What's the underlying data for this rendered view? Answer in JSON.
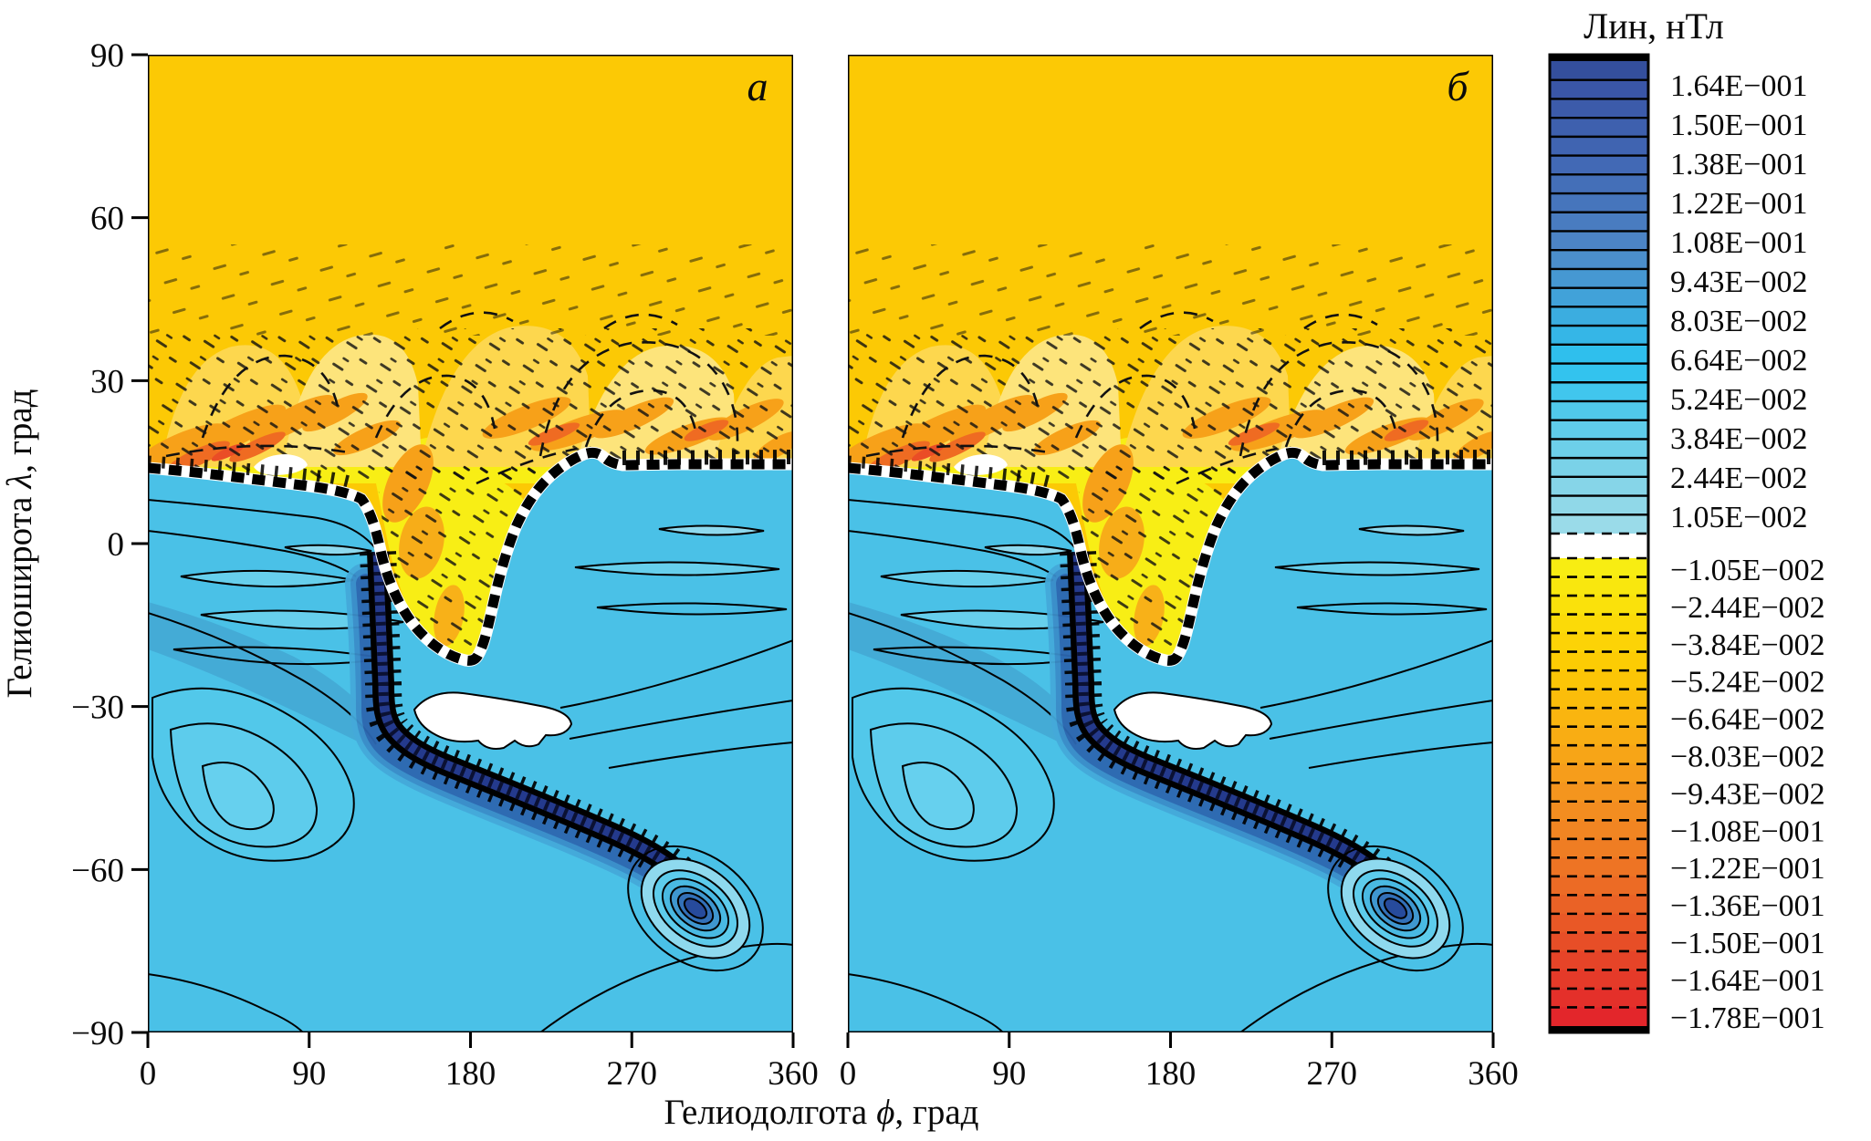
{
  "figure": {
    "panels": [
      {
        "label": "a"
      },
      {
        "label": "б"
      }
    ],
    "x_axis": {
      "title_prefix": "Гелиодолгота",
      "title_symbol": "ϕ",
      "title_suffix": ", град",
      "ticks": [
        "0",
        "90",
        "180",
        "270",
        "360"
      ]
    },
    "y_axis": {
      "title_prefix": "Гелиоширота",
      "title_symbol": "λ",
      "title_suffix": ", град",
      "ticks": [
        "90",
        "60",
        "30",
        "0",
        "−30",
        "−60",
        "−90"
      ]
    },
    "colorbar": {
      "title": "Лин, нТл",
      "positive_labels": [
        "1.64E−001",
        "1.50E−001",
        "1.38E−001",
        "1.22E−001",
        "1.08E−001",
        "9.43E−002",
        "8.03E−002",
        "6.64E−002",
        "5.24E−002",
        "3.84E−002",
        "2.44E−002",
        "1.05E−002"
      ],
      "negative_labels": [
        "−1.05E−002",
        "−2.44E−002",
        "−3.84E−002",
        "−5.24E−002",
        "−6.64E−002",
        "−8.03E−002",
        "−9.43E−002",
        "−1.08E−001",
        "−1.22E−001",
        "−1.36E−001",
        "−1.50E−001",
        "−1.64E−001",
        "−1.78E−001"
      ],
      "positive_colors": [
        "#344f9d",
        "#3a56a7",
        "#3c5baa",
        "#3e60ae",
        "#4064b1",
        "#4269b5",
        "#446fb8",
        "#4675bc",
        "#497cc0",
        "#4c84c5",
        "#4b8ecb",
        "#4698d2",
        "#41a2d9",
        "#3bade0",
        "#35b6e7",
        "#2fbfed",
        "#33c3ee",
        "#41c6ed",
        "#50c9eb",
        "#5fccea",
        "#6dcfe9",
        "#7ad2e8",
        "#86d5e8",
        "#90d8e8",
        "#9adbe9"
      ],
      "negative_colors": [
        "#f8ed12",
        "#f9e70e",
        "#fae10b",
        "#fbda08",
        "#fcd306",
        "#fccc04",
        "#fcc506",
        "#fbbd0a",
        "#fab50f",
        "#f9ad13",
        "#f7a517",
        "#f69d1b",
        "#f4951e",
        "#f38d20",
        "#f18522",
        "#ef7d23",
        "#ee7424",
        "#ec6b25",
        "#ea6226",
        "#e95826",
        "#e74e27",
        "#e64428",
        "#e53a29",
        "#e4302a",
        "#e3262b"
      ]
    }
  },
  "chart_data": {
    "type": "heatmap",
    "subtype": "filled-contour-map, two identical side-by-side panels",
    "panels": [
      "a",
      "б"
    ],
    "xlabel": "Гелиодолгота ϕ, град",
    "ylabel": "Гелиоширота λ, град",
    "x_ticks": [
      0,
      90,
      180,
      270,
      360
    ],
    "y_ticks": [
      90,
      60,
      30,
      0,
      -30,
      -60,
      -90
    ],
    "xlim": [
      0,
      360
    ],
    "ylim": [
      -90,
      90
    ],
    "grid": false,
    "legend_position": "right colorbar",
    "colorbar_title": "Лин, нТл",
    "contour_levels_labeled_positive": [
      0.164,
      0.15,
      0.138,
      0.122,
      0.108,
      0.0943,
      0.0803,
      0.0664,
      0.0524,
      0.0384,
      0.0244,
      0.0105
    ],
    "contour_levels_labeled_negative": [
      -0.0105,
      -0.0244,
      -0.0384,
      -0.0524,
      -0.0664,
      -0.0803,
      -0.0943,
      -0.108,
      -0.122,
      -0.136,
      -0.15,
      -0.164,
      -0.178
    ],
    "positive_region": "blue shades below the neutral line (solid contours), strongly positive dark-blue S-shaped band",
    "negative_region": "yellow/orange shades above the neutral line (dashed contours)",
    "neutral_line_deg": [
      [
        0,
        13.8
      ],
      [
        45,
        13
      ],
      [
        90,
        10.8
      ],
      [
        118,
        8
      ],
      [
        125,
        4
      ],
      [
        130,
        -2
      ],
      [
        135,
        -10
      ],
      [
        148,
        -15
      ],
      [
        160,
        -19
      ],
      [
        175,
        -21.5
      ],
      [
        183,
        -21.7
      ],
      [
        188,
        -18
      ],
      [
        193,
        -10
      ],
      [
        200,
        -2
      ],
      [
        207,
        5
      ],
      [
        215,
        10
      ],
      [
        228,
        13.5
      ],
      [
        247,
        17
      ],
      [
        256,
        14.5
      ],
      [
        295,
        14.6
      ],
      [
        360,
        14.6
      ]
    ],
    "strong_positive_band_centerline_deg": [
      [
        128,
        -1.5
      ],
      [
        130,
        -17
      ],
      [
        131,
        -26
      ],
      [
        134,
        -32
      ],
      [
        150,
        -37
      ],
      [
        180,
        -42
      ],
      [
        224,
        -48.5
      ],
      [
        255,
        -53
      ],
      [
        283,
        -58
      ],
      [
        302,
        -63.5
      ]
    ],
    "white_out_of_scale_patches_deg": [
      {
        "center": [
          73,
          14
        ],
        "extent": [
          30,
          4
        ]
      },
      {
        "center": [
          192,
          -31
        ],
        "extent": [
          88,
          12
        ]
      }
    ],
    "palette": {
      "gold": "#fcc905",
      "bright_yellow": "#f8ee15",
      "pale_yellow": "#fde47b",
      "orange": "#f7a119",
      "deep_orange": "#ef6b22",
      "red": "#e3262b",
      "light_blue": "#4ac1e7",
      "mid_blue": "#44abd6",
      "lens_cyan": "#67cfec",
      "pale_cyan": "#8ed9ee",
      "navy": "#243a8d",
      "royal_blue": "#3a56a7",
      "white": "#ffffff"
    }
  }
}
